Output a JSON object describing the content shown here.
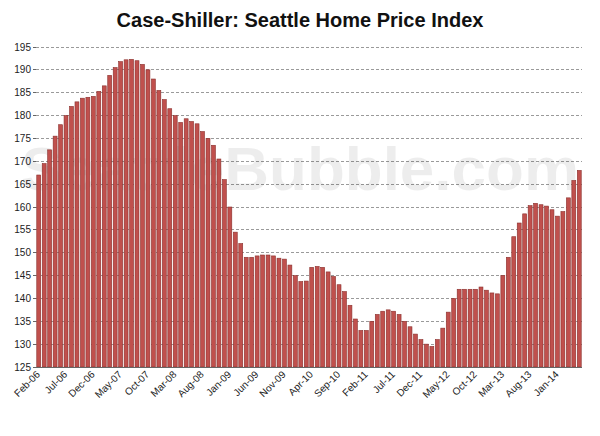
{
  "chart_data": {
    "type": "bar",
    "title": "Case-Shiller: Seattle Home Price Index",
    "annotations": [
      "SeattleBubble.com"
    ],
    "categories": [
      "Feb-06",
      null,
      null,
      null,
      null,
      "Jul-06",
      null,
      null,
      null,
      null,
      "Dec-06",
      null,
      null,
      null,
      null,
      "May-07",
      null,
      null,
      null,
      null,
      "Oct-07",
      null,
      null,
      null,
      null,
      "Mar-08",
      null,
      null,
      null,
      null,
      "Aug-08",
      null,
      null,
      null,
      null,
      "Jan-09",
      null,
      null,
      null,
      null,
      "Jun-09",
      null,
      null,
      null,
      null,
      "Nov-09",
      null,
      null,
      null,
      null,
      "Apr-10",
      null,
      null,
      null,
      null,
      "Sep-10",
      null,
      null,
      null,
      null,
      "Feb-11",
      null,
      null,
      null,
      null,
      "Jul-11",
      null,
      null,
      null,
      null,
      "Dec-11",
      null,
      null,
      null,
      null,
      "May-12",
      null,
      null,
      null,
      null,
      "Oct-12",
      null,
      null,
      null,
      null,
      "Mar-13",
      null,
      null,
      null,
      null,
      "Aug-13",
      null,
      null,
      null,
      null,
      "Jan-14",
      null,
      null,
      null,
      null
    ],
    "values": [
      167,
      169.5,
      172.5,
      175.5,
      178,
      180,
      182,
      183,
      183.8,
      184,
      184.2,
      185.3,
      186.5,
      188.8,
      190.5,
      191.8,
      192.2,
      192.3,
      192,
      191.2,
      190,
      188,
      185.5,
      183.5,
      181.5,
      180,
      178.5,
      179.3,
      178.7,
      178.2,
      176.5,
      175,
      173.5,
      170.5,
      166,
      160,
      154.5,
      152,
      149,
      149,
      149.3,
      149.5,
      149.5,
      149.3,
      148.8,
      148.6,
      147.3,
      145,
      143.7,
      143.8,
      146.8,
      147,
      146.8,
      145.8,
      144.8,
      143,
      141.5,
      138.5,
      135.5,
      133,
      133,
      135,
      136.5,
      137.2,
      137.5,
      137.2,
      136.5,
      135,
      133.8,
      132.2,
      131,
      130,
      129.5,
      131,
      133.5,
      137,
      140,
      142,
      142,
      142,
      142,
      142.5,
      141.8,
      141.2,
      141,
      145,
      149,
      153.5,
      156.5,
      158.5,
      160.3,
      160.8,
      160.5,
      160.2,
      159.4,
      158,
      159,
      162,
      165.8,
      168
    ],
    "color": "#c0504d",
    "ylim": [
      125,
      195
    ],
    "yticks": [
      125,
      130,
      135,
      140,
      145,
      150,
      155,
      160,
      165,
      170,
      175,
      180,
      185,
      190,
      195
    ],
    "grid": true
  }
}
